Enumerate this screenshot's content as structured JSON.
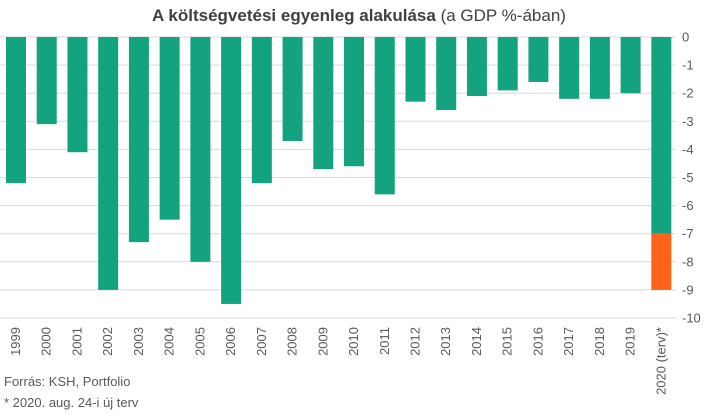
{
  "chart_data": {
    "type": "bar",
    "title_bold": "A költségvetési egyenleg alakulása",
    "title_rest": "(a GDP %-ában)",
    "categories": [
      "1999",
      "2000",
      "2001",
      "2002",
      "2003",
      "2004",
      "2005",
      "2006",
      "2007",
      "2008",
      "2009",
      "2010",
      "2011",
      "2012",
      "2013",
      "2014",
      "2015",
      "2016",
      "2017",
      "2018",
      "2019",
      "2020 (terv)*"
    ],
    "series": [
      {
        "values": [
          -5.2,
          -3.1,
          -4.1,
          -9.0,
          -7.3,
          -6.5,
          -8.0,
          -9.5,
          -5.2,
          -3.7,
          -4.7,
          -4.6,
          -5.6,
          -2.3,
          -2.6,
          -2.1,
          -1.9,
          -1.6,
          -2.2,
          -2.2,
          -2.0,
          -7.0
        ]
      },
      {
        "values": [
          0,
          0,
          0,
          0,
          0,
          0,
          0,
          0,
          0,
          0,
          0,
          0,
          0,
          0,
          0,
          0,
          0,
          0,
          0,
          0,
          0,
          -2.0
        ]
      }
    ],
    "colors": [
      "#13A37F",
      "#FF6319"
    ],
    "yticks": [
      "0",
      "-1",
      "-2",
      "-3",
      "-4",
      "-5",
      "-6",
      "-7",
      "-8",
      "-9",
      "-10"
    ],
    "ylim": [
      -10,
      0
    ],
    "y_axis_position": "right",
    "grid": true
  },
  "footer": {
    "source": "Forrás: KSH, Portfolio",
    "note": "* 2020. aug. 24-i új terv"
  }
}
